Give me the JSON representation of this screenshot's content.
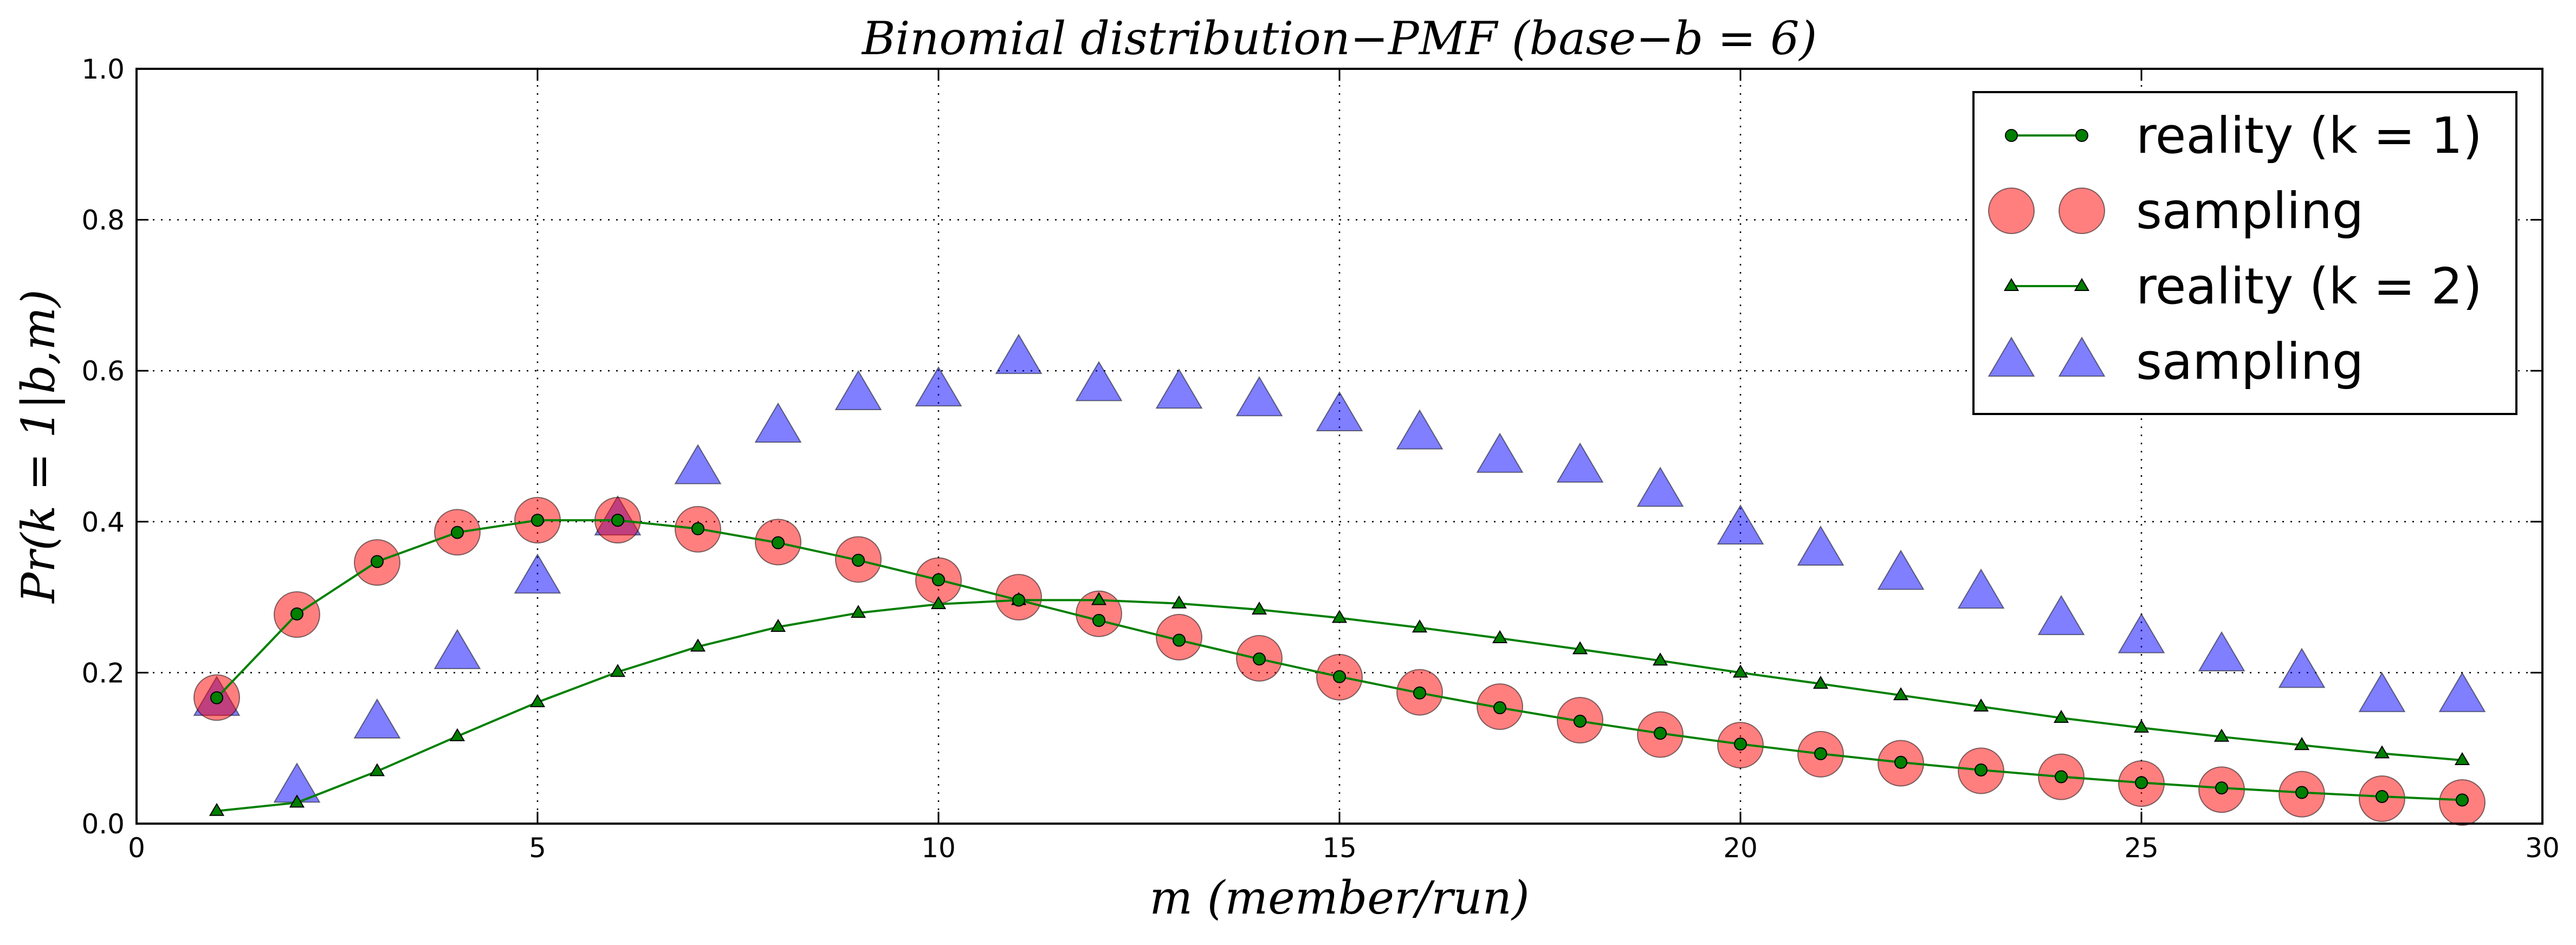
{
  "chart_data": {
    "type": "line",
    "title": "Binomial distribution−PMF (base−b = 6)",
    "xlabel": "m (member/run)",
    "ylabel": "Pr(k = 1|b,m)",
    "xlim": [
      0,
      30
    ],
    "ylim": [
      0,
      1.0
    ],
    "xticks": [
      "0",
      "5",
      "10",
      "15",
      "20",
      "25",
      "30"
    ],
    "yticks": [
      "0.0",
      "0.2",
      "0.4",
      "0.6",
      "0.8",
      "1.0"
    ],
    "grid": true,
    "legend_position": "top-right",
    "x": [
      1,
      2,
      3,
      4,
      5,
      6,
      7,
      8,
      9,
      10,
      11,
      12,
      13,
      14,
      15,
      16,
      17,
      18,
      19,
      20,
      21,
      22,
      23,
      24,
      25,
      26,
      27,
      28,
      29
    ],
    "series": [
      {
        "name": "reality (k = 1)",
        "style": "line-circle",
        "color": "#008000",
        "values": [
          0.1667,
          0.2778,
          0.3472,
          0.3858,
          0.4019,
          0.4019,
          0.3907,
          0.3721,
          0.3489,
          0.323,
          0.2961,
          0.2692,
          0.243,
          0.2181,
          0.1947,
          0.1731,
          0.1535,
          0.1357,
          0.1197,
          0.1054,
          0.0926,
          0.0812,
          0.0711,
          0.0621,
          0.0543,
          0.0473,
          0.0413,
          0.0359,
          0.0313
        ]
      },
      {
        "name": "sampling",
        "style": "circle",
        "color": "#ff0000",
        "values": [
          0.167,
          0.277,
          0.346,
          0.386,
          0.402,
          0.402,
          0.39,
          0.373,
          0.35,
          0.322,
          0.3,
          0.278,
          0.247,
          0.219,
          0.194,
          0.174,
          0.155,
          0.137,
          0.118,
          0.104,
          0.092,
          0.08,
          0.07,
          0.062,
          0.053,
          0.045,
          0.039,
          0.033,
          0.028
        ]
      },
      {
        "name": "reality (k = 2)",
        "style": "line-triangle",
        "color": "#008000",
        "values": [
          0.0167,
          0.0278,
          0.0694,
          0.1157,
          0.1608,
          0.2009,
          0.2344,
          0.2605,
          0.2791,
          0.2907,
          0.2961,
          0.2961,
          0.2916,
          0.2835,
          0.2725,
          0.2597,
          0.2456,
          0.2309,
          0.2159,
          0.2,
          0.1852,
          0.17,
          0.155,
          0.14,
          0.127,
          0.115,
          0.104,
          0.093,
          0.084
        ]
      },
      {
        "name": "sampling",
        "style": "triangle",
        "color": "#0000ff",
        "values": [
          0.163,
          0.048,
          0.133,
          0.225,
          0.325,
          0.402,
          0.47,
          0.525,
          0.568,
          0.573,
          0.616,
          0.58,
          0.57,
          0.56,
          0.54,
          0.516,
          0.485,
          0.472,
          0.44,
          0.39,
          0.362,
          0.33,
          0.305,
          0.27,
          0.246,
          0.222,
          0.2,
          0.168,
          0.168
        ]
      }
    ]
  }
}
